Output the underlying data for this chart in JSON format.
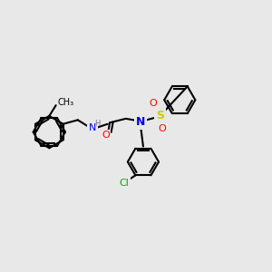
{
  "bg_color": "#e8e8e8",
  "bond_color": "#000000",
  "bond_width": 1.5,
  "atom_colors": {
    "N": "#0000ee",
    "O": "#ff0000",
    "S": "#cccc00",
    "Cl": "#00aa00",
    "H": "#777777",
    "C": "#000000"
  },
  "font_size": 8,
  "fig_size": [
    3.0,
    3.0
  ],
  "dpi": 100
}
